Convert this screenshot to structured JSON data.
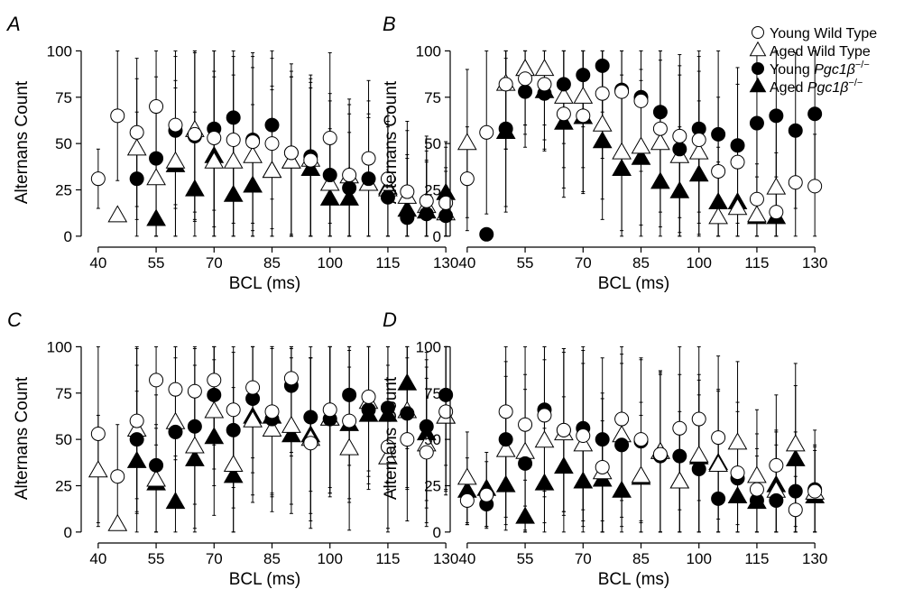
{
  "legend": [
    {
      "key": "ywt",
      "text": "Young Wild Type",
      "italic": "",
      "sup": ""
    },
    {
      "key": "awt",
      "text": "Aged Wild Type",
      "italic": "",
      "sup": ""
    },
    {
      "key": "yko",
      "text": "Young ",
      "italic": "Pgc1β",
      "sup": "−/−"
    },
    {
      "key": "ako",
      "text": "Aged ",
      "italic": "Pgc1β",
      "sup": "−/−"
    }
  ],
  "chart_data": [
    {
      "type": "scatter",
      "panel": "A",
      "xlabel": "BCL (ms)",
      "ylabel": "Alternans Count",
      "xlim": [
        37,
        133
      ],
      "ylim": [
        -3,
        108
      ],
      "xticks": [
        40,
        55,
        70,
        85,
        100,
        115,
        130
      ],
      "yticks": [
        0,
        25,
        50,
        75,
        100
      ],
      "error_bars": true,
      "series": [
        {
          "key": "ywt",
          "x": [
            40,
            45,
            50,
            55,
            60,
            65,
            70,
            75,
            80,
            85,
            90,
            95,
            100,
            105,
            110,
            115,
            120,
            125,
            130
          ],
          "y": [
            31,
            65,
            56,
            70,
            60,
            55,
            53,
            52,
            51,
            50,
            45,
            41,
            53,
            33,
            42,
            31,
            24,
            19,
            18
          ],
          "err": [
            16,
            35,
            40,
            42,
            45,
            47,
            48,
            45,
            48,
            46,
            48,
            44,
            46,
            38,
            42,
            38,
            38,
            35,
            30
          ]
        },
        {
          "key": "awt",
          "x": [
            45,
            50,
            55,
            60,
            65,
            70,
            75,
            80,
            85,
            90,
            95,
            100,
            105,
            110,
            115,
            120,
            125,
            130
          ],
          "y": [
            11,
            47,
            31,
            40,
            57,
            40,
            40,
            43,
            35,
            40,
            41,
            28,
            32,
            28,
            25,
            21,
            16,
            12
          ],
          "err": [
            2,
            38,
            42,
            44,
            44,
            46,
            47,
            48,
            46,
            46,
            42,
            45,
            42,
            38,
            40,
            36,
            30,
            25
          ]
        },
        {
          "key": "yko",
          "x": [
            50,
            55,
            60,
            65,
            70,
            75,
            80,
            85,
            90,
            95,
            100,
            105,
            110,
            115,
            120,
            125,
            130
          ],
          "y": [
            31,
            42,
            57,
            54,
            58,
            64,
            52,
            60,
            45,
            43,
            33,
            26,
            31,
            21,
            10,
            12,
            11
          ],
          "err": [
            36,
            44,
            40,
            45,
            44,
            42,
            45,
            40,
            44,
            44,
            44,
            40,
            42,
            38,
            32,
            28,
            24
          ]
        },
        {
          "key": "ako",
          "x": [
            55,
            60,
            65,
            70,
            75,
            80,
            85,
            90,
            95,
            100,
            105,
            110,
            115,
            120,
            125,
            130
          ],
          "y": [
            9,
            38,
            25,
            43,
            22,
            27,
            35,
            40,
            36,
            20,
            20,
            28,
            26,
            14,
            13,
            23
          ],
          "err": [
            25,
            42,
            42,
            46,
            44,
            44,
            44,
            46,
            44,
            38,
            36,
            36,
            36,
            30,
            28,
            28
          ]
        }
      ]
    },
    {
      "type": "scatter",
      "panel": "B",
      "xlabel": "BCL (ms)",
      "ylabel": "Alternans Count",
      "xlim": [
        37,
        133
      ],
      "ylim": [
        -3,
        108
      ],
      "xticks": [
        40,
        55,
        70,
        85,
        100,
        115,
        130
      ],
      "yticks": [
        0,
        25,
        50,
        75,
        100
      ],
      "error_bars": true,
      "series": [
        {
          "key": "ywt",
          "x": [
            40,
            45,
            50,
            55,
            60,
            65,
            70,
            75,
            80,
            85,
            90,
            95,
            100,
            105,
            110,
            115,
            120,
            125,
            130
          ],
          "y": [
            31,
            56,
            82,
            85,
            82,
            66,
            65,
            77,
            78,
            73,
            58,
            54,
            52,
            35,
            40,
            20,
            13,
            29,
            27
          ],
          "err": [
            28,
            44,
            35,
            30,
            30,
            40,
            42,
            35,
            35,
            38,
            45,
            44,
            45,
            40,
            42,
            38,
            32,
            30,
            28
          ]
        },
        {
          "key": "awt",
          "x": [
            40,
            50,
            55,
            60,
            65,
            70,
            75,
            80,
            85,
            90,
            95,
            100,
            105,
            110,
            115,
            120
          ],
          "y": [
            50,
            82,
            90,
            90,
            75,
            75,
            60,
            45,
            48,
            50,
            43,
            45,
            10,
            15,
            11,
            26
          ],
          "err": [
            40,
            35,
            30,
            30,
            38,
            38,
            40,
            42,
            42,
            45,
            44,
            44,
            30,
            32,
            28,
            36
          ]
        },
        {
          "key": "yko",
          "x": [
            45,
            50,
            55,
            60,
            65,
            70,
            75,
            80,
            85,
            90,
            95,
            100,
            105,
            110,
            115,
            120,
            125,
            130
          ],
          "y": [
            1,
            58,
            78,
            77,
            82,
            87,
            92,
            79,
            75,
            67,
            47,
            58,
            55,
            49,
            61,
            65,
            57,
            66
          ],
          "err": [
            2,
            45,
            30,
            30,
            32,
            28,
            25,
            32,
            36,
            40,
            45,
            45,
            45,
            42,
            42,
            40,
            42,
            38
          ]
        },
        {
          "key": "ako",
          "x": [
            50,
            55,
            60,
            65,
            70,
            75,
            80,
            85,
            90,
            95,
            100,
            105,
            110,
            115,
            120
          ],
          "y": [
            56,
            90,
            78,
            61,
            64,
            51,
            36,
            42,
            29,
            24,
            33,
            18,
            18,
            10,
            10
          ],
          "err": [
            40,
            30,
            32,
            40,
            40,
            42,
            42,
            42,
            38,
            35,
            40,
            30,
            30,
            22,
            22
          ]
        }
      ]
    },
    {
      "type": "scatter",
      "panel": "C",
      "xlabel": "BCL (ms)",
      "ylabel": "Alternans Count",
      "xlim": [
        37,
        133
      ],
      "ylim": [
        -3,
        108
      ],
      "xticks": [
        40,
        55,
        70,
        85,
        100,
        115,
        130
      ],
      "yticks": [
        0,
        25,
        50,
        75,
        100
      ],
      "error_bars": true,
      "series": [
        {
          "key": "ywt",
          "x": [
            40,
            45,
            50,
            55,
            60,
            65,
            70,
            75,
            80,
            85,
            90,
            95,
            100,
            105,
            110,
            115,
            120,
            125,
            130
          ],
          "y": [
            53,
            30,
            60,
            82,
            77,
            76,
            82,
            66,
            78,
            65,
            83,
            48,
            66,
            60,
            73,
            46,
            50,
            43,
            65
          ],
          "err": [
            48,
            28,
            42,
            35,
            38,
            40,
            35,
            42,
            38,
            44,
            40,
            46,
            42,
            44,
            40,
            44,
            44,
            40,
            42
          ]
        },
        {
          "key": "awt",
          "x": [
            40,
            45,
            50,
            55,
            60,
            65,
            70,
            75,
            80,
            85,
            90,
            95,
            100,
            105,
            110,
            115,
            120,
            125,
            130
          ],
          "y": [
            33,
            4,
            55,
            28,
            59,
            46,
            65,
            36,
            60,
            55,
            57,
            50,
            61,
            45,
            70,
            40,
            65,
            47,
            62
          ],
          "err": [
            30,
            3,
            44,
            30,
            42,
            44,
            40,
            42,
            44,
            44,
            42,
            44,
            42,
            44,
            40,
            40,
            42,
            42,
            40
          ]
        },
        {
          "key": "yko",
          "x": [
            50,
            55,
            60,
            65,
            70,
            75,
            80,
            85,
            90,
            95,
            100,
            105,
            110,
            115,
            120,
            125,
            130
          ],
          "y": [
            50,
            36,
            54,
            57,
            74,
            55,
            72,
            61,
            79,
            62,
            61,
            74,
            66,
            67,
            64,
            57,
            74
          ],
          "err": [
            40,
            38,
            40,
            42,
            40,
            42,
            40,
            42,
            38,
            40,
            40,
            38,
            40,
            40,
            40,
            40,
            38
          ]
        },
        {
          "key": "ako",
          "x": [
            50,
            55,
            60,
            65,
            70,
            75,
            80,
            85,
            90,
            95,
            100,
            105,
            110,
            115,
            120,
            125,
            130
          ],
          "y": [
            38,
            26,
            16,
            39,
            51,
            30,
            62,
            62,
            52,
            52,
            61,
            58,
            63,
            63,
            80,
            53,
            62
          ],
          "err": [
            38,
            30,
            25,
            40,
            42,
            35,
            42,
            42,
            42,
            42,
            40,
            40,
            40,
            40,
            35,
            40,
            42
          ]
        }
      ]
    },
    {
      "type": "scatter",
      "panel": "D",
      "xlabel": "BCL (ms)",
      "ylabel": "Alternans Count",
      "xlim": [
        37,
        133
      ],
      "ylim": [
        -3,
        108
      ],
      "xticks": [
        40,
        55,
        70,
        85,
        100,
        115,
        130
      ],
      "yticks": [
        0,
        25,
        50,
        75,
        100
      ],
      "error_bars": true,
      "series": [
        {
          "key": "ywt",
          "x": [
            40,
            45,
            50,
            55,
            60,
            65,
            70,
            75,
            80,
            85,
            90,
            95,
            100,
            105,
            110,
            115,
            120,
            125,
            130
          ],
          "y": [
            17,
            20,
            65,
            58,
            63,
            55,
            52,
            35,
            61,
            50,
            42,
            56,
            61,
            51,
            32,
            23,
            36,
            12,
            22
          ],
          "err": [
            12,
            18,
            42,
            44,
            44,
            44,
            46,
            40,
            44,
            44,
            44,
            44,
            44,
            44,
            38,
            30,
            38,
            18,
            25
          ]
        },
        {
          "key": "awt",
          "x": [
            40,
            50,
            55,
            60,
            65,
            70,
            75,
            80,
            85,
            90,
            95,
            100,
            105,
            110,
            115,
            120,
            125,
            130
          ],
          "y": [
            29,
            44,
            43,
            49,
            53,
            47,
            32,
            52,
            30,
            43,
            27,
            41,
            36,
            48,
            30,
            22,
            47,
            21
          ],
          "err": [
            25,
            40,
            42,
            44,
            44,
            44,
            40,
            44,
            40,
            44,
            38,
            44,
            40,
            44,
            36,
            32,
            44,
            25
          ]
        },
        {
          "key": "yko",
          "x": [
            45,
            50,
            55,
            60,
            65,
            70,
            75,
            80,
            85,
            90,
            95,
            100,
            105,
            110,
            115,
            120,
            125,
            130
          ],
          "y": [
            15,
            50,
            37,
            66,
            55,
            56,
            50,
            47,
            49,
            41,
            41,
            34,
            18,
            29,
            17,
            17,
            22,
            23
          ],
          "err": [
            12,
            42,
            40,
            44,
            44,
            44,
            44,
            44,
            44,
            44,
            44,
            40,
            30,
            36,
            28,
            30,
            32,
            32
          ]
        },
        {
          "key": "ako",
          "x": [
            40,
            45,
            50,
            55,
            60,
            65,
            70,
            75,
            80,
            85,
            90,
            95,
            100,
            105,
            110,
            115,
            120,
            125,
            130
          ],
          "y": [
            22,
            23,
            25,
            8,
            26,
            35,
            27,
            28,
            22,
            29,
            43,
            27,
            40,
            37,
            19,
            16,
            25,
            39,
            19
          ],
          "err": [
            18,
            20,
            24,
            20,
            30,
            38,
            32,
            32,
            28,
            34,
            44,
            32,
            42,
            40,
            28,
            25,
            30,
            40,
            25
          ]
        }
      ]
    }
  ]
}
